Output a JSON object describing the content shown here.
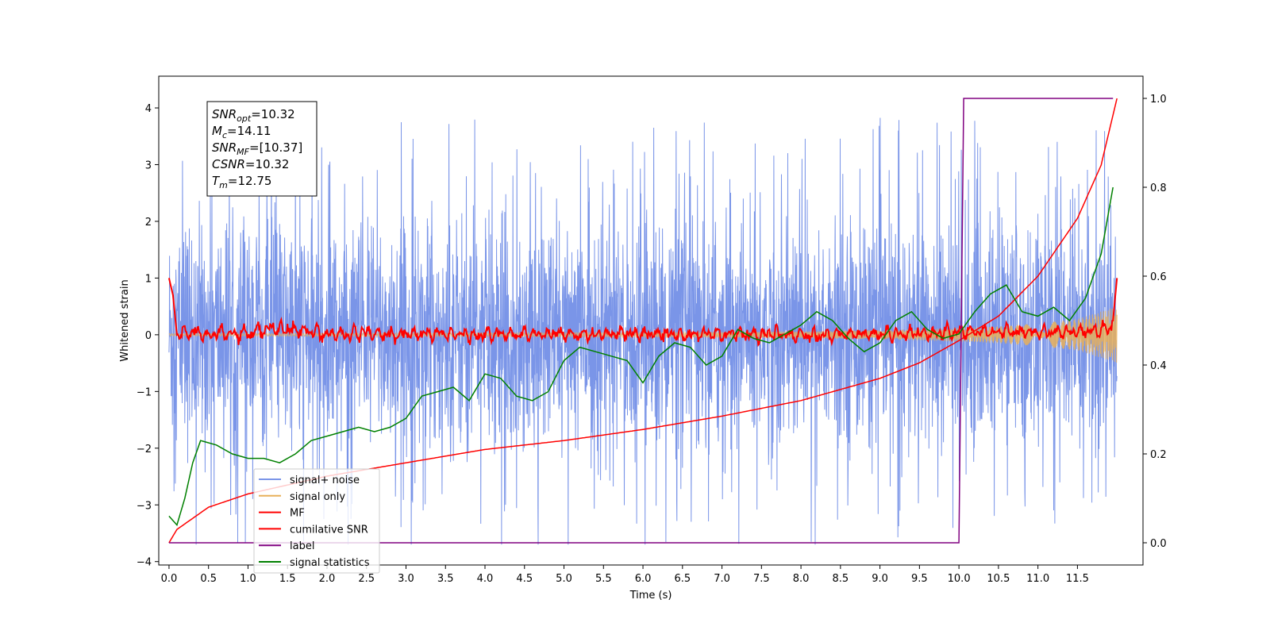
{
  "chart_data": {
    "type": "line",
    "xlabel": "Time (s)",
    "ylabel": "Whitened strain",
    "xlim": [
      -0.13,
      12.33
    ],
    "ylim": [
      -4.06,
      4.56
    ],
    "ylim_right": [
      -0.05,
      1.05
    ],
    "x_ticks": [
      0.0,
      0.5,
      1.0,
      1.5,
      2.0,
      2.5,
      3.0,
      3.5,
      4.0,
      4.5,
      5.0,
      5.5,
      6.0,
      6.5,
      7.0,
      7.5,
      8.0,
      8.5,
      9.0,
      9.5,
      10.0,
      10.5,
      11.0,
      11.5
    ],
    "x_tick_labels": [
      "0.0",
      "0.5",
      "1.0",
      "1.5",
      "2.0",
      "2.5",
      "3.0",
      "3.5",
      "4.0",
      "4.5",
      "5.0",
      "5.5",
      "6.0",
      "6.5",
      "7.0",
      "7.5",
      "8.0",
      "8.5",
      "9.0",
      "9.5",
      "10.0",
      "10.5",
      "11.0",
      "11.5"
    ],
    "y_ticks_left": [
      -4,
      -3,
      -2,
      -1,
      0,
      1,
      2,
      3,
      4
    ],
    "y_tick_labels_left": [
      "−4",
      "−3",
      "−2",
      "−1",
      "0",
      "1",
      "2",
      "3",
      "4"
    ],
    "y_ticks_right": [
      0.0,
      0.2,
      0.4,
      0.6,
      0.8,
      1.0
    ],
    "y_tick_labels_right": [
      "0.0",
      "0.2",
      "0.4",
      "0.6",
      "0.8",
      "1.0"
    ],
    "grid": false,
    "legend_position": "lower-left",
    "series": [
      {
        "name": "signal+ noise",
        "axis": "left",
        "color": "#7a95e8",
        "x_range": [
          0.0,
          12.0
        ],
        "envelope_typical": 1.6,
        "peak_range": [
          -3.7,
          4.2
        ],
        "noisy": true
      },
      {
        "name": "signal only",
        "axis": "left",
        "color": "#e8b05a",
        "x": [
          0.0,
          3.0,
          6.0,
          8.0,
          9.0,
          10.0,
          10.5,
          11.0,
          11.5,
          12.0
        ],
        "amplitude": [
          0.02,
          0.03,
          0.04,
          0.06,
          0.08,
          0.12,
          0.15,
          0.2,
          0.28,
          0.5
        ]
      },
      {
        "name": "MF",
        "axis": "left",
        "color": "#ff0000",
        "x": [
          0.0,
          0.05,
          0.1,
          0.15,
          0.25,
          0.5,
          1.0,
          1.3,
          2.0,
          4.0,
          6.0,
          8.0,
          9.5,
          10.0,
          11.5,
          11.95,
          12.0
        ],
        "y": [
          1.0,
          0.7,
          0.0,
          0.05,
          0.15,
          0.05,
          0.0,
          0.3,
          0.05,
          0.0,
          0.05,
          0.0,
          0.05,
          0.15,
          0.1,
          0.25,
          1.0
        ]
      },
      {
        "name": "cumilative SNR",
        "axis": "right",
        "color": "#ff0000",
        "x": [
          0.0,
          0.1,
          0.5,
          1.0,
          2.0,
          3.0,
          4.0,
          5.0,
          6.0,
          7.0,
          8.0,
          9.0,
          9.5,
          10.0,
          10.5,
          11.0,
          11.5,
          11.8,
          12.0
        ],
        "y": [
          0.0,
          0.03,
          0.08,
          0.11,
          0.15,
          0.18,
          0.21,
          0.23,
          0.255,
          0.285,
          0.32,
          0.37,
          0.405,
          0.455,
          0.51,
          0.6,
          0.73,
          0.85,
          1.0
        ]
      },
      {
        "name": "label",
        "axis": "right",
        "color": "#800080",
        "x": [
          0.0,
          10.0,
          10.06,
          11.95
        ],
        "y": [
          0.0,
          0.0,
          1.0,
          1.0
        ]
      },
      {
        "name": "signal statistics",
        "axis": "right",
        "color": "#008000",
        "x": [
          0.0,
          0.1,
          0.2,
          0.3,
          0.4,
          0.6,
          0.8,
          1.0,
          1.2,
          1.4,
          1.6,
          1.8,
          2.0,
          2.2,
          2.4,
          2.6,
          2.8,
          3.0,
          3.2,
          3.4,
          3.6,
          3.8,
          4.0,
          4.2,
          4.4,
          4.6,
          4.8,
          5.0,
          5.2,
          5.4,
          5.6,
          5.8,
          6.0,
          6.2,
          6.4,
          6.6,
          6.8,
          7.0,
          7.2,
          7.4,
          7.6,
          7.8,
          8.0,
          8.2,
          8.4,
          8.6,
          8.8,
          9.0,
          9.2,
          9.4,
          9.6,
          9.8,
          10.0,
          10.2,
          10.4,
          10.6,
          10.8,
          11.0,
          11.2,
          11.4,
          11.6,
          11.8,
          11.95
        ],
        "y": [
          0.06,
          0.04,
          0.1,
          0.18,
          0.23,
          0.22,
          0.2,
          0.19,
          0.19,
          0.18,
          0.2,
          0.23,
          0.24,
          0.25,
          0.26,
          0.25,
          0.26,
          0.28,
          0.33,
          0.34,
          0.35,
          0.32,
          0.38,
          0.37,
          0.33,
          0.32,
          0.34,
          0.41,
          0.44,
          0.43,
          0.42,
          0.41,
          0.36,
          0.42,
          0.45,
          0.44,
          0.4,
          0.42,
          0.48,
          0.46,
          0.45,
          0.47,
          0.49,
          0.52,
          0.5,
          0.46,
          0.43,
          0.45,
          0.5,
          0.52,
          0.48,
          0.46,
          0.47,
          0.52,
          0.56,
          0.58,
          0.52,
          0.51,
          0.53,
          0.5,
          0.55,
          0.65,
          0.8
        ]
      }
    ],
    "stats_box": {
      "lines": [
        {
          "symbol": "SNR",
          "sub": "opt",
          "text": "=10.32"
        },
        {
          "symbol": "M",
          "sub": "c",
          "text": "=14.11"
        },
        {
          "symbol": "SNR",
          "sub": "MF",
          "text": "=[10.37]"
        },
        {
          "symbol": "CSNR",
          "sub": "",
          "text": "=10.32"
        },
        {
          "symbol": "T",
          "sub": "m",
          "text": "=12.75"
        }
      ]
    }
  }
}
